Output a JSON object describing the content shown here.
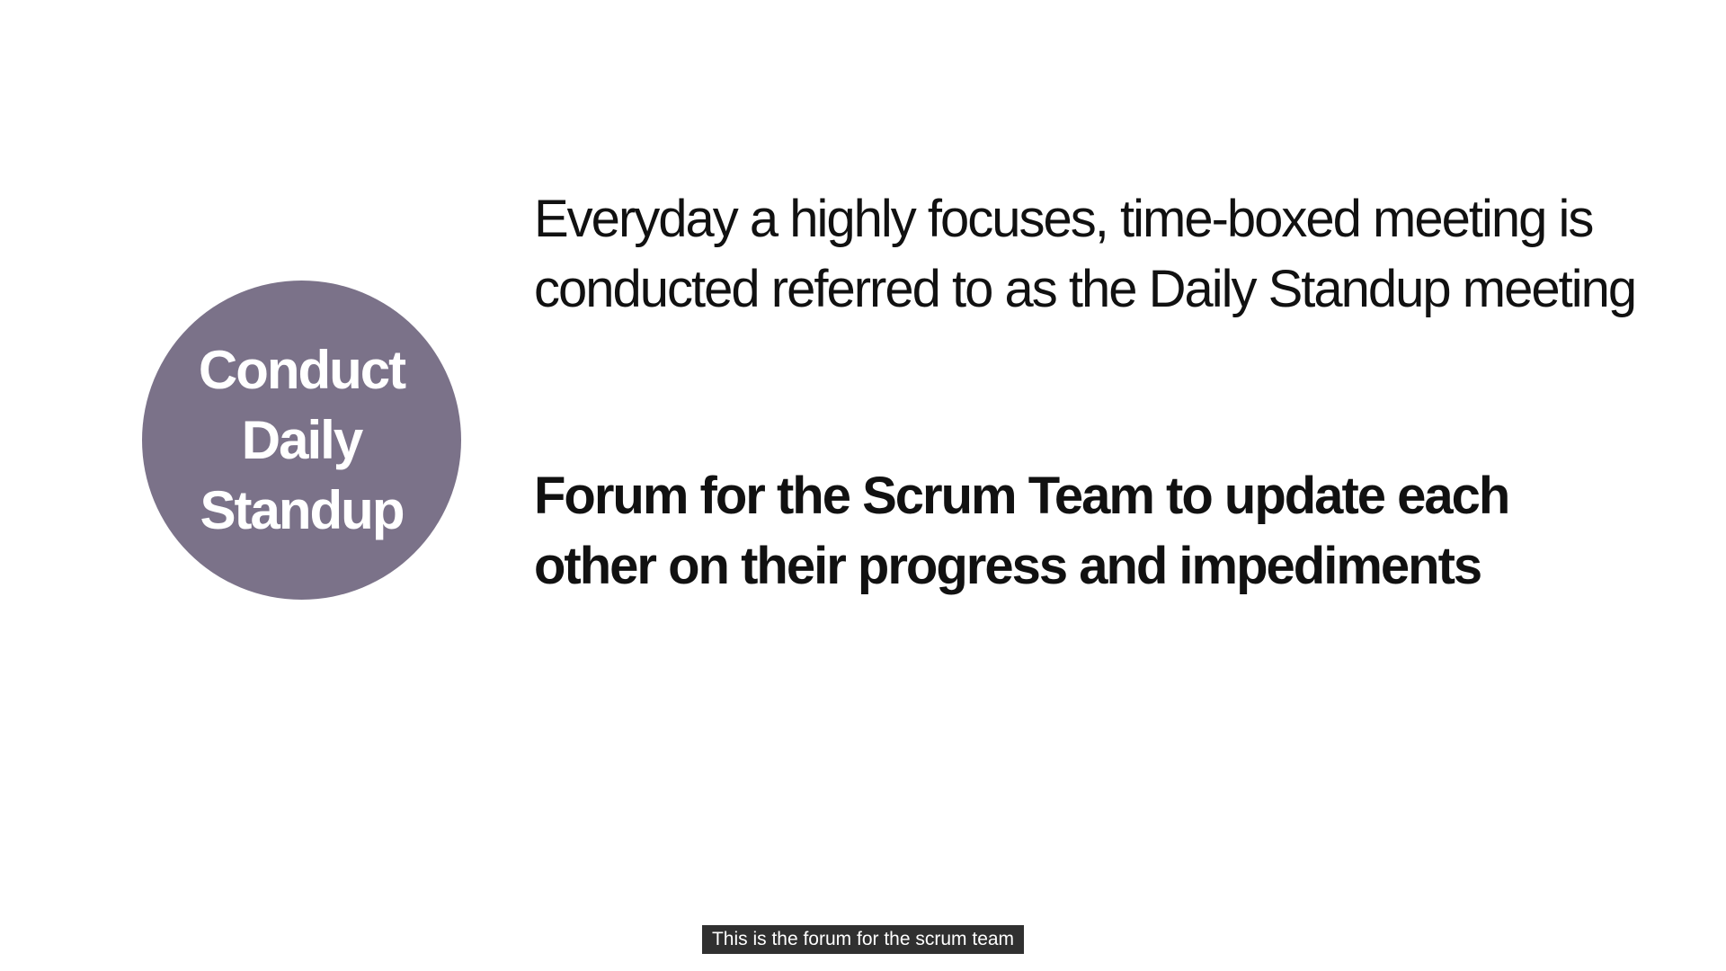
{
  "slide": {
    "circle": {
      "lines": [
        "Conduct",
        "Daily",
        "Standup"
      ],
      "fill_color": "#7b7289",
      "text_color": "#ffffff"
    },
    "paragraph_1": "Everyday a highly focuses, time-boxed meeting is conducted referred to as the Daily Standup meeting",
    "paragraph_2": "Forum for the Scrum Team to update each other on their progress and impediments"
  },
  "caption": {
    "text": "This is the forum for the scrum team"
  }
}
